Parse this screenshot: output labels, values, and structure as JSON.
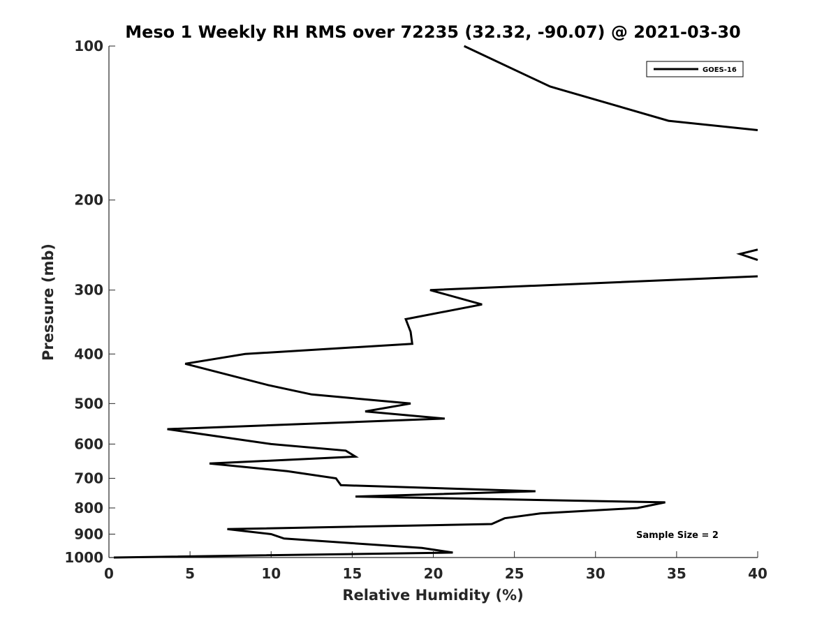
{
  "chart_data": {
    "type": "line",
    "title": "Meso 1 Weekly RH RMS over 72235 (32.32, -90.07) @ 2021-03-30",
    "xlabel": "Relative Humidity (%)",
    "ylabel": "Pressure (mb)",
    "xlim": [
      0,
      40
    ],
    "ylim": [
      100,
      1000
    ],
    "yscale": "log",
    "y_reversed": true,
    "x_ticks": [
      0,
      5,
      10,
      15,
      20,
      25,
      30,
      35,
      40
    ],
    "x_tick_labels": [
      "0",
      "5",
      "10",
      "15",
      "20",
      "25",
      "30",
      "35",
      "40"
    ],
    "y_ticks": [
      100,
      200,
      300,
      400,
      500,
      600,
      700,
      800,
      900,
      1000
    ],
    "y_tick_labels": [
      "100",
      "200",
      "300",
      "400",
      "500",
      "600",
      "700",
      "800",
      "900",
      "1000"
    ],
    "grid": false,
    "legend_position": "top-right",
    "annotation": "Sample Size = 2",
    "series": [
      {
        "name": "GOES-16",
        "color": "#000000",
        "segments": [
          [
            {
              "x": 21.9,
              "p": 100
            },
            {
              "x": 27.2,
              "p": 120
            },
            {
              "x": 34.5,
              "p": 140
            },
            {
              "x": 40.0,
              "p": 146
            }
          ],
          [
            {
              "x": 40.0,
              "p": 250
            },
            {
              "x": 38.9,
              "p": 255
            },
            {
              "x": 40.0,
              "p": 262
            }
          ],
          [
            {
              "x": 40.0,
              "p": 282
            },
            {
              "x": 19.8,
              "p": 300
            },
            {
              "x": 23.0,
              "p": 320
            },
            {
              "x": 18.3,
              "p": 342
            },
            {
              "x": 18.6,
              "p": 362
            },
            {
              "x": 18.7,
              "p": 382
            },
            {
              "x": 8.4,
              "p": 400
            },
            {
              "x": 4.7,
              "p": 418
            },
            {
              "x": 9.8,
              "p": 460
            },
            {
              "x": 12.5,
              "p": 480
            },
            {
              "x": 18.6,
              "p": 500
            },
            {
              "x": 15.8,
              "p": 518
            },
            {
              "x": 20.7,
              "p": 535
            },
            {
              "x": 3.6,
              "p": 561
            },
            {
              "x": 10.0,
              "p": 600
            },
            {
              "x": 14.6,
              "p": 618
            },
            {
              "x": 15.2,
              "p": 635
            },
            {
              "x": 6.2,
              "p": 655
            },
            {
              "x": 11.0,
              "p": 678
            },
            {
              "x": 14.0,
              "p": 700
            },
            {
              "x": 14.3,
              "p": 722
            },
            {
              "x": 26.3,
              "p": 742
            },
            {
              "x": 15.2,
              "p": 760
            },
            {
              "x": 34.3,
              "p": 780
            },
            {
              "x": 32.6,
              "p": 800
            },
            {
              "x": 26.6,
              "p": 820
            },
            {
              "x": 24.4,
              "p": 838
            },
            {
              "x": 23.6,
              "p": 860
            },
            {
              "x": 7.3,
              "p": 880
            },
            {
              "x": 10.0,
              "p": 900
            },
            {
              "x": 10.8,
              "p": 918
            },
            {
              "x": 19.3,
              "p": 958
            },
            {
              "x": 21.2,
              "p": 978
            },
            {
              "x": 0.3,
              "p": 1000
            }
          ]
        ]
      }
    ]
  }
}
